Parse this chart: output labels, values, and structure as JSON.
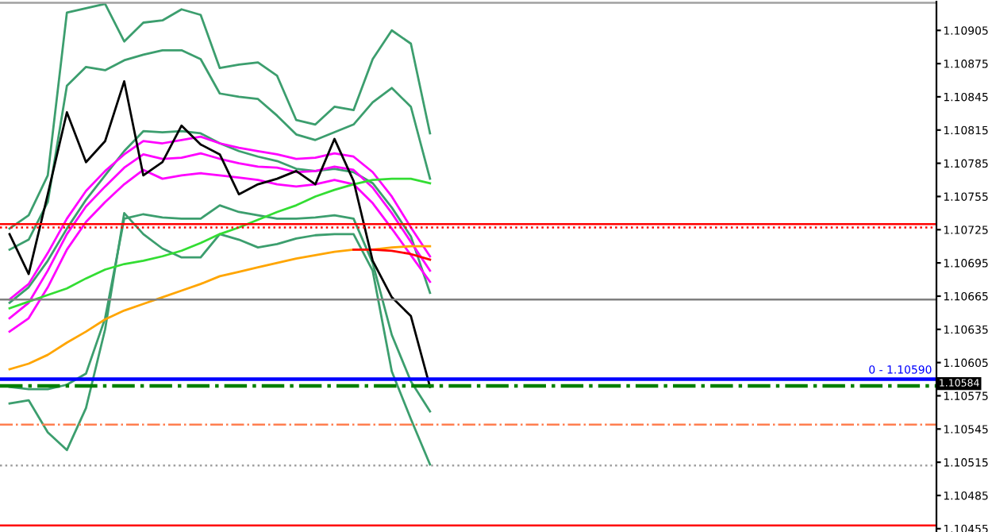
{
  "chart_data": {
    "type": "line",
    "categories": [
      null,
      null,
      null,
      null,
      null,
      null,
      null,
      null,
      null,
      null,
      null,
      null,
      null,
      null,
      null,
      null,
      null,
      null,
      null,
      null,
      null,
      null,
      null,
      null,
      null,
      null,
      null,
      null,
      null,
      null,
      null,
      null,
      null,
      null,
      null,
      null,
      null,
      null,
      null,
      null,
      null,
      null,
      null,
      null,
      null,
      null,
      null,
      null,
      null
    ],
    "series": [
      {
        "color": "#3c9e6e",
        "values": [
          1.10726,
          1.10738,
          1.10774,
          1.10921,
          1.10925,
          1.10929,
          1.10895,
          1.10912,
          1.10914,
          1.10924,
          1.10919,
          1.10871,
          1.10874,
          1.10876,
          1.10864,
          1.10824,
          1.1082,
          1.10836,
          1.10833,
          1.10879,
          1.10905,
          1.10893,
          1.10812,
          null,
          null,
          null,
          null,
          null,
          null,
          null,
          null,
          null,
          null,
          null,
          null,
          null,
          null,
          null,
          null,
          null,
          null,
          null,
          null,
          null,
          null,
          null,
          null,
          null,
          null
        ]
      },
      {
        "color": "#3c9e6e",
        "values": [
          1.10707,
          1.10716,
          1.1075,
          1.10855,
          1.10872,
          1.10869,
          1.10878,
          1.10883,
          1.10887,
          1.10887,
          1.10879,
          1.10848,
          1.10845,
          1.10843,
          1.10828,
          1.10811,
          1.10806,
          1.10813,
          1.1082,
          1.1084,
          1.10853,
          1.10836,
          1.10771,
          null,
          null,
          null,
          null,
          null,
          null,
          null,
          null,
          null,
          null,
          null,
          null,
          null,
          null,
          null,
          null,
          null,
          null,
          null,
          null,
          null,
          null,
          null,
          null,
          null,
          null
        ]
      },
      {
        "color": "#3c9e6e",
        "values": [
          1.10659,
          1.10673,
          1.10697,
          1.10726,
          1.10752,
          1.10774,
          1.10796,
          1.10814,
          1.10813,
          1.10814,
          1.10812,
          1.10803,
          1.10796,
          1.10791,
          1.10787,
          1.1078,
          1.10778,
          1.1078,
          1.10777,
          1.10767,
          1.10745,
          1.10719,
          1.10668,
          null,
          null,
          null,
          null,
          null,
          null,
          null,
          null,
          null,
          null,
          null,
          null,
          null,
          null,
          null,
          null,
          null,
          null,
          null,
          null,
          null,
          null,
          null,
          null,
          null,
          null
        ]
      },
      {
        "color": "#3c9e6e",
        "values": [
          1.10583,
          1.10581,
          1.10581,
          1.10585,
          1.10595,
          1.10645,
          1.10735,
          1.10739,
          1.10736,
          1.10735,
          1.10735,
          1.10747,
          1.10741,
          1.10738,
          1.10735,
          1.10735,
          1.10736,
          1.10738,
          1.10735,
          1.10695,
          1.1063,
          1.10588,
          1.10561,
          null,
          null,
          null,
          null,
          null,
          null,
          null,
          null,
          null,
          null,
          null,
          null,
          null,
          null,
          null,
          null,
          null,
          null,
          null,
          null,
          null,
          null,
          null,
          null,
          null,
          null
        ]
      },
      {
        "color": "#3c9e6e",
        "values": [
          1.10568,
          1.10571,
          1.10542,
          1.10526,
          1.10564,
          1.10635,
          1.1074,
          1.10721,
          1.10708,
          1.107,
          1.107,
          1.10721,
          1.10716,
          1.10709,
          1.10712,
          1.10717,
          1.1072,
          1.10721,
          1.10721,
          1.10688,
          1.10597,
          1.10554,
          1.10513,
          null,
          null,
          null,
          null,
          null,
          null,
          null,
          null,
          null,
          null,
          null,
          null,
          null,
          null,
          null,
          null,
          null,
          null,
          null,
          null,
          null,
          null,
          null,
          null,
          null,
          null
        ]
      },
      {
        "color": "#ff00ff",
        "values": [
          1.10662,
          1.10676,
          1.10704,
          1.10735,
          1.1076,
          1.10778,
          1.10793,
          1.10805,
          1.10803,
          1.10806,
          1.10809,
          1.10803,
          1.10799,
          1.10796,
          1.10793,
          1.10789,
          1.1079,
          1.10794,
          1.10791,
          1.10777,
          1.10755,
          1.10727,
          1.10701,
          null,
          null,
          null,
          null,
          null,
          null,
          null,
          null,
          null,
          null,
          null,
          null,
          null,
          null,
          null,
          null,
          null,
          null,
          null,
          null,
          null,
          null,
          null,
          null,
          null,
          null
        ]
      },
      {
        "color": "#ff00ff",
        "values": [
          1.10645,
          1.10659,
          1.10688,
          1.10721,
          1.10746,
          1.10764,
          1.10781,
          1.10793,
          1.10789,
          1.1079,
          1.10794,
          1.10789,
          1.10785,
          1.10782,
          1.10781,
          1.10777,
          1.10778,
          1.10782,
          1.10779,
          1.10763,
          1.1074,
          1.10714,
          1.10688,
          null,
          null,
          null,
          null,
          null,
          null,
          null,
          null,
          null,
          null,
          null,
          null,
          null,
          null,
          null,
          null,
          null,
          null,
          null,
          null,
          null,
          null,
          null,
          null,
          null,
          null
        ]
      },
      {
        "color": "#ff00ff",
        "values": [
          1.10633,
          1.10645,
          1.10673,
          1.10707,
          1.10732,
          1.1075,
          1.10766,
          1.10779,
          1.10771,
          1.10774,
          1.10776,
          1.10774,
          1.10772,
          1.1077,
          1.10766,
          1.10764,
          1.10766,
          1.1077,
          1.10766,
          1.10749,
          1.10726,
          1.10702,
          1.10678,
          null,
          null,
          null,
          null,
          null,
          null,
          null,
          null,
          null,
          null,
          null,
          null,
          null,
          null,
          null,
          null,
          null,
          null,
          null,
          null,
          null,
          null,
          null,
          null,
          null,
          null
        ]
      },
      {
        "color": "#33dd33",
        "values": [
          1.10654,
          1.1066,
          1.10666,
          1.10672,
          1.10681,
          1.10689,
          1.10694,
          1.10697,
          1.10701,
          1.10706,
          1.10713,
          1.10721,
          1.10727,
          1.10734,
          1.10741,
          1.10747,
          1.10755,
          1.10761,
          1.10766,
          1.1077,
          1.10771,
          1.10771,
          1.10767,
          null,
          null,
          null,
          null,
          null,
          null,
          null,
          null,
          null,
          null,
          null,
          null,
          null,
          null,
          null,
          null,
          null,
          null,
          null,
          null,
          null,
          null,
          null,
          null,
          null,
          null
        ]
      },
      {
        "color": "#ffa500",
        "values": [
          1.10599,
          1.10604,
          1.10612,
          1.10623,
          1.10633,
          1.10644,
          1.10652,
          1.10658,
          1.10664,
          1.1067,
          1.10676,
          1.10683,
          1.10687,
          1.10691,
          1.10695,
          1.10699,
          1.10702,
          1.10705,
          1.10707,
          1.10707,
          1.10709,
          1.1071,
          1.1071,
          null,
          null,
          null,
          null,
          null,
          null,
          null,
          null,
          null,
          null,
          null,
          null,
          null,
          null,
          null,
          null,
          null,
          null,
          null,
          null,
          null,
          null,
          null,
          null,
          null,
          null
        ]
      },
      {
        "color": "#ff0000",
        "values": [
          null,
          null,
          null,
          null,
          null,
          null,
          null,
          null,
          null,
          null,
          null,
          null,
          null,
          null,
          null,
          null,
          null,
          null,
          1.10707,
          1.10707,
          1.10706,
          1.10703,
          1.10698,
          null,
          null,
          null,
          null,
          null,
          null,
          null,
          null,
          null,
          null,
          null,
          null,
          null,
          null,
          null,
          null,
          null,
          null,
          null,
          null,
          null,
          null,
          null,
          null,
          null,
          null
        ]
      },
      {
        "color": "#000000",
        "values": [
          1.10721,
          1.10685,
          1.10757,
          1.10831,
          1.10786,
          1.10805,
          1.10859,
          1.10774,
          1.10786,
          1.10819,
          1.10802,
          1.10793,
          1.10757,
          1.10766,
          1.10771,
          1.10778,
          1.10766,
          1.10807,
          1.10769,
          1.10697,
          1.10664,
          1.10647,
          1.10583,
          null,
          null,
          null,
          null,
          null,
          null,
          null,
          null,
          null,
          null,
          null,
          null,
          null,
          null,
          null,
          null,
          null,
          null,
          null,
          null,
          null,
          null,
          null,
          null,
          null,
          null
        ]
      }
    ],
    "ylim": [
      1.10452,
      1.10931
    ],
    "yticks": [
      1.10455,
      1.10485,
      1.10515,
      1.10545,
      1.10575,
      1.10605,
      1.10635,
      1.10665,
      1.10695,
      1.10725,
      1.10755,
      1.10785,
      1.10815,
      1.10845,
      1.10875,
      1.10905
    ],
    "tick_labels": "y",
    "grid": false,
    "legend": false,
    "line_style": "solid",
    "ref_lines": [
      {
        "axis": "y",
        "value": 1.1093,
        "color": "#a0a0a0",
        "line_style": "solid"
      },
      {
        "axis": "y",
        "value": 1.1073,
        "color": "#ff0000",
        "line_style": "solid"
      },
      {
        "axis": "y",
        "value": 1.10727,
        "color": "#ff0000",
        "line_style": "dotted"
      },
      {
        "axis": "y",
        "value": 1.10662,
        "color": "#808080",
        "line_style": "solid"
      },
      {
        "axis": "y",
        "value": 1.1059,
        "color": "#0000ff",
        "line_style": "solid"
      },
      {
        "axis": "y",
        "value": 1.10584,
        "label": "1.10584",
        "color": "#008000",
        "line_style": "dashed"
      },
      {
        "axis": "y",
        "value": 1.10549,
        "color": "#ff7f50",
        "line_style": "dashed"
      },
      {
        "axis": "y",
        "value": 1.10512,
        "color": "#a0a0a0",
        "line_style": "dotted"
      },
      {
        "axis": "y",
        "value": 1.10458,
        "color": "#ff0000",
        "line_style": "solid"
      }
    ],
    "annotations": [
      {
        "text": "0 - 1.10590",
        "y": 1.1059
      }
    ]
  }
}
